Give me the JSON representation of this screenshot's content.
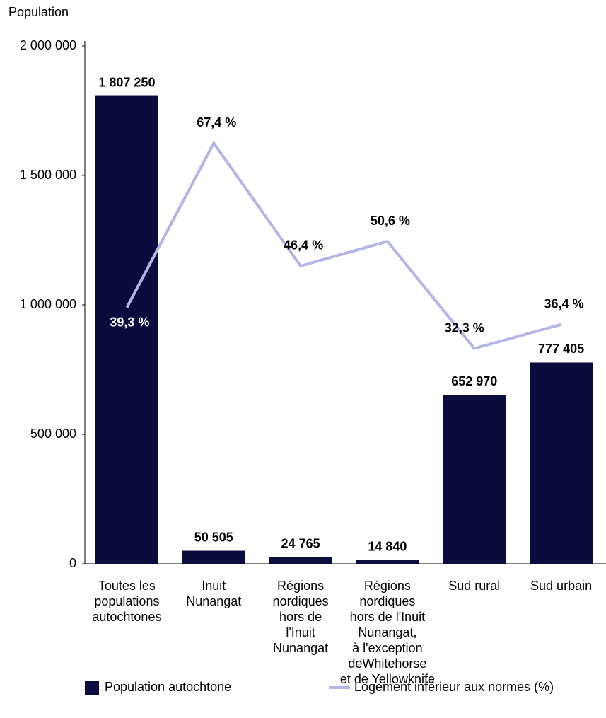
{
  "chart_data": {
    "type": "bar",
    "y_label": "Population",
    "categories": [
      "Toutes les\npopulations\nautochtones",
      "Inuit\nNunangat",
      "Régions\nnordiques\nhors de\nl'Inuit\nNunangat",
      "Régions\nnordiques\nhors de l'Inuit\nNunangat,\nà l'exception\ndeWhitehorse\net de Yellowknife",
      "Sud rural",
      "Sud urbain"
    ],
    "series": [
      {
        "name": "Population autochtone",
        "type": "bar",
        "color": "#0b0c3d",
        "values": [
          1807250,
          50505,
          24765,
          14840,
          652970,
          777405
        ],
        "value_labels": [
          "1 807 250",
          "50 505",
          "24 765",
          "14 840",
          "652 970",
          "777 405"
        ]
      },
      {
        "name": "Logement inférieur aux normes (%)",
        "type": "line",
        "axis": "y2",
        "color": "#b4b4e6",
        "values": [
          39.3,
          67.4,
          46.4,
          50.6,
          32.3,
          36.4
        ],
        "value_labels": [
          "39,3 %",
          "67,4 %",
          "46,4 %",
          "50,6 %",
          "32,3 %",
          "36,4 %"
        ]
      }
    ],
    "ylim": [
      0,
      2000000
    ],
    "yticks": [
      {
        "value": 0,
        "label": "0"
      },
      {
        "value": 500000,
        "label": "500 000"
      },
      {
        "value": 1000000,
        "label": "1 000 000"
      },
      {
        "value": 1500000,
        "label": "1 500 000"
      },
      {
        "value": 2000000,
        "label": "2 000 000"
      }
    ],
    "y2lim": [
      -4.5,
      84
    ],
    "grid": false,
    "legend": "bottom"
  }
}
